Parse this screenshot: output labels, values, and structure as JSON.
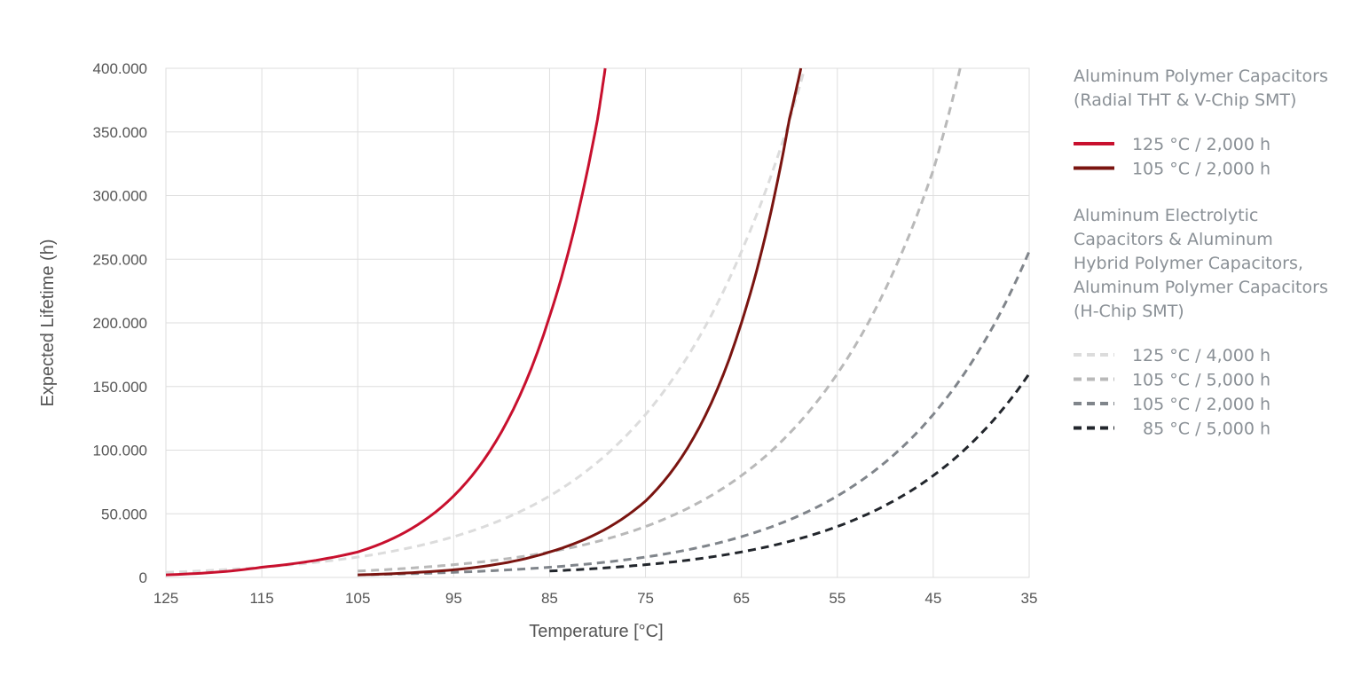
{
  "chart_data": {
    "type": "line",
    "xlabel": "Temperature [°C]",
    "ylabel": "Expected Lifetime (h)",
    "xlim": [
      125,
      35
    ],
    "ylim": [
      0,
      400000
    ],
    "x_ticks": [
      "125",
      "115",
      "105",
      "95",
      "85",
      "75",
      "65",
      "55",
      "45",
      "35"
    ],
    "y_ticks": [
      "0",
      "50.000",
      "100.000",
      "150.000",
      "200.000",
      "250.000",
      "300.000",
      "350.000",
      "400.000"
    ],
    "grid": true,
    "legend_groups": [
      {
        "title_lines": [
          "Aluminum Polymer Capacitors",
          "(Radial THT & V-Chip SMT)"
        ],
        "series_index": [
          0,
          1
        ]
      },
      {
        "title_lines": [
          "Aluminum Electrolytic",
          "Capacitors & Aluminum",
          "Hybrid Polymer Capacitors,",
          "Aluminum Polymer Capacitors",
          "(H-Chip SMT)"
        ],
        "series_index": [
          2,
          3,
          4,
          5
        ]
      }
    ],
    "series": [
      {
        "name": "125 °C / 2,000 h",
        "color": "#c8102e",
        "style": "solid",
        "x": [
          125,
          115,
          105,
          95,
          85,
          80,
          79.2
        ],
        "y": [
          2000,
          8000,
          20000,
          64000,
          205000,
          360000,
          400000
        ]
      },
      {
        "name": "105 °C / 2,000 h",
        "color": "#7a1410",
        "style": "solid",
        "x": [
          105,
          95,
          85,
          75,
          65,
          60,
          58.8
        ],
        "y": [
          2000,
          6000,
          20000,
          60000,
          200000,
          360000,
          400000
        ]
      },
      {
        "name": "125 °C / 4,000 h",
        "color": "#dcdcdc",
        "style": "dashed",
        "x": [
          125,
          115,
          105,
          95,
          85,
          75,
          65,
          58.4
        ],
        "y": [
          4000,
          8000,
          16000,
          32000,
          64000,
          128000,
          256000,
          400000
        ]
      },
      {
        "name": "105 °C / 5,000 h",
        "color": "#b9b9b9",
        "style": "dashed",
        "x": [
          105,
          95,
          85,
          75,
          65,
          55,
          45,
          42.2
        ],
        "y": [
          5000,
          10000,
          20000,
          40000,
          80000,
          160000,
          320000,
          400000
        ]
      },
      {
        "name": "105 °C / 2,000 h",
        "color": "#80858b",
        "style": "dashed",
        "x": [
          105,
          95,
          85,
          75,
          65,
          55,
          45,
          35
        ],
        "y": [
          2000,
          4000,
          8000,
          16000,
          32000,
          64000,
          128000,
          256000
        ]
      },
      {
        "name": "85 °C / 5,000 h",
        "color": "#22262c",
        "style": "dashed",
        "x": [
          85,
          75,
          65,
          55,
          45,
          35
        ],
        "y": [
          5000,
          10000,
          20000,
          40000,
          80000,
          160000
        ]
      }
    ]
  }
}
